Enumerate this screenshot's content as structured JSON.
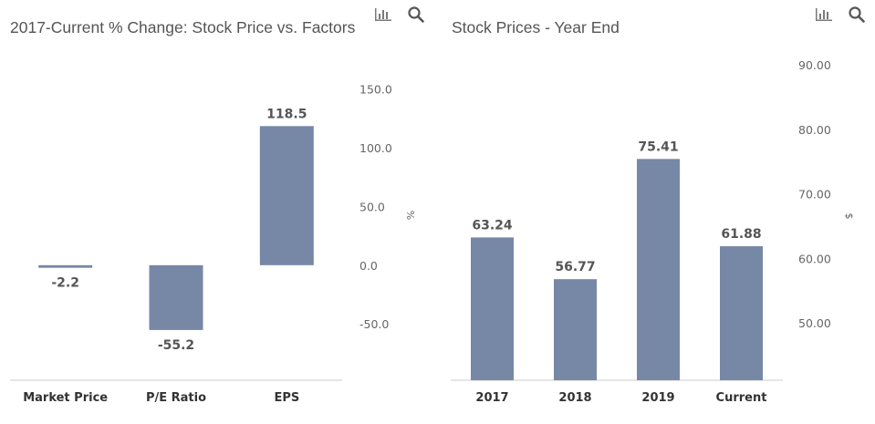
{
  "colors": {
    "bar": "#7688a6",
    "axis": "#cccccc",
    "text": "#555555"
  },
  "toolbar": {
    "chart_icon": "bar-chart-icon",
    "search_icon": "magnifier-icon"
  },
  "chart_data": [
    {
      "type": "bar",
      "title": "2017-Current % Change: Stock Price vs. Factors",
      "categories": [
        "Market Price",
        "P/E Ratio",
        "EPS"
      ],
      "values": [
        -2.2,
        -55.2,
        118.5
      ],
      "value_labels": [
        "-2.2",
        "-55.2",
        "118.5"
      ],
      "ylabel": "%",
      "yticks": [
        "150.0",
        "100.0",
        "50.0",
        "0.0",
        "-50.0"
      ],
      "ytick_values": [
        150,
        100,
        50,
        0,
        -50
      ],
      "ylim": [
        -98,
        170
      ],
      "grid": false,
      "yaxis_side": "right"
    },
    {
      "type": "bar",
      "title": "Stock Prices - Year End",
      "categories": [
        "2017",
        "2018",
        "2019",
        "Current"
      ],
      "values": [
        63.24,
        56.77,
        75.41,
        61.88
      ],
      "value_labels": [
        "63.24",
        "56.77",
        "75.41",
        "61.88"
      ],
      "ylabel": "$",
      "yticks": [
        "90.00",
        "80.00",
        "70.00",
        "60.00",
        "50.00"
      ],
      "ytick_values": [
        90,
        80,
        70,
        60,
        50
      ],
      "ylim": [
        41.1,
        92
      ],
      "grid": false,
      "yaxis_side": "right"
    }
  ]
}
